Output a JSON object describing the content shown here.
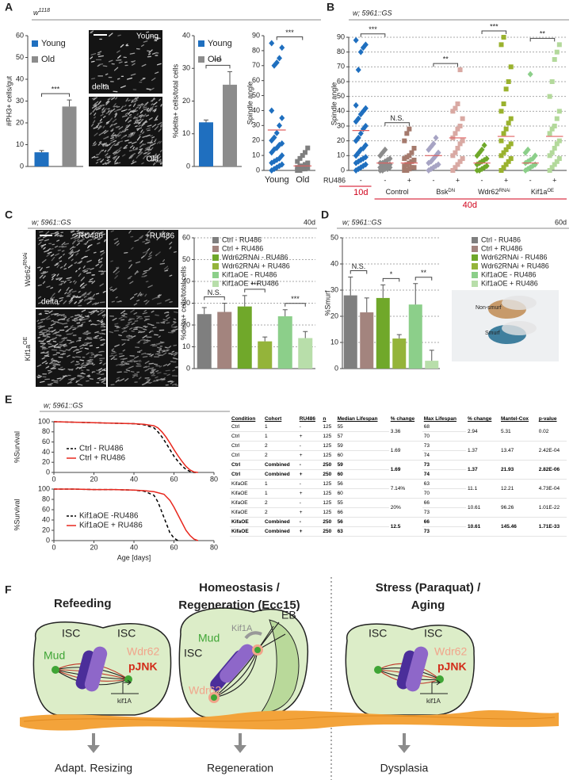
{
  "panel_labels": [
    "A",
    "B",
    "C",
    "D",
    "E",
    "F"
  ],
  "panel_a": {
    "genotype": {
      "base": "w",
      "sup": "1118"
    },
    "images": [
      "Young",
      "delta",
      "Old"
    ]
  },
  "panel_c": {
    "columns": [
      "-RU486",
      "+RU486"
    ],
    "rows": [
      {
        "base": "Wdr62",
        "sup": "RNAi"
      },
      {
        "base": "Kif1a",
        "sup": "OE"
      }
    ],
    "stain": "delta"
  },
  "panel_d": {
    "images": [
      "Non-smurf",
      "Smurf"
    ]
  },
  "chart_data": [
    {
      "type": "bar",
      "y_label": "#PH3+ cells/gut",
      "series": [
        {
          "name": "Young",
          "color": "#1f6fbf",
          "values": [
            6.5
          ],
          "errors": [
            0.8
          ]
        },
        {
          "name": "Old",
          "color": "#8c8c8c",
          "values": [
            27.5
          ],
          "errors": [
            3
          ]
        }
      ],
      "ylim": [
        0,
        60
      ],
      "yticks": [
        0,
        10,
        20,
        30,
        40,
        50,
        60
      ],
      "grid": false,
      "annotations": [
        "***"
      ]
    },
    {
      "type": "bar",
      "y_label": "%delta+ cells/total cells",
      "series": [
        {
          "name": "Young",
          "color": "#1f6fbf",
          "values": [
            13.5
          ],
          "errors": [
            0.7
          ]
        },
        {
          "name": "Old",
          "color": "#8c8c8c",
          "values": [
            25
          ],
          "errors": [
            4
          ]
        }
      ],
      "ylim": [
        0,
        40
      ],
      "yticks": [
        0,
        10,
        20,
        30,
        40
      ],
      "grid": false,
      "annotations": [
        "***"
      ]
    },
    {
      "type": "strip",
      "y_label": "Spindle angle",
      "categories": [
        "Young",
        "Old"
      ],
      "colors": [
        "#1f6fbf",
        "#7f7f7f"
      ],
      "markers": [
        "diamond",
        "square"
      ],
      "points": [
        [
          0,
          1,
          2,
          3,
          4,
          5,
          6,
          7,
          8,
          10,
          12,
          14,
          15,
          17,
          18,
          20,
          22,
          25,
          30,
          35,
          40,
          70,
          72,
          75,
          82,
          85
        ],
        [
          0,
          0,
          1,
          1,
          2,
          2,
          3,
          3,
          4,
          5,
          6,
          8,
          10,
          12,
          15
        ]
      ],
      "means": [
        27,
        3
      ],
      "mean_color": "#e06060",
      "ylim": [
        0,
        90
      ],
      "yticks": [
        0,
        10,
        20,
        30,
        40,
        50,
        60,
        70,
        80,
        90
      ],
      "grid": false,
      "annotations": [
        "***"
      ]
    },
    {
      "type": "strip",
      "title": "w; 5961::GS",
      "y_label": "Spindle angle",
      "row_label": "RU486",
      "categories": [
        "-",
        "-",
        "+",
        "-",
        "+",
        "-",
        "+",
        "-",
        "+"
      ],
      "groups": [
        {
          "base": "Control"
        },
        {
          "base": "Bsk",
          "sup": "DN"
        },
        {
          "base": "Wdr62",
          "sup": "RNAi"
        },
        {
          "base": "Kif1a",
          "sup": "OE"
        }
      ],
      "ages": [
        "10d",
        "40d"
      ],
      "age_color": "#d0021b",
      "colors": [
        "#1f6fbf",
        "#8c8c8c",
        "#a57a6d",
        "#a7a4c4",
        "#d9a9a3",
        "#6fa82a",
        "#9ab22e",
        "#8ccf8a",
        "#b3d99b"
      ],
      "markers": [
        "diamond",
        "diamond",
        "square",
        "diamond",
        "square",
        "diamond",
        "square",
        "diamond",
        "square"
      ],
      "points": [
        [
          0,
          1,
          2,
          3,
          4,
          5,
          6,
          7,
          8,
          9,
          10,
          12,
          14,
          15,
          17,
          20,
          22,
          25,
          28,
          30,
          33,
          35,
          38,
          40,
          42,
          44,
          68,
          80,
          83,
          85,
          88
        ],
        [
          0,
          0,
          1,
          1,
          2,
          2,
          3,
          3,
          4,
          4,
          5,
          5,
          6,
          7,
          8,
          10,
          12,
          14
        ],
        [
          0,
          0,
          1,
          2,
          2,
          3,
          4,
          5,
          6,
          7,
          8,
          9,
          10,
          12,
          15,
          20,
          25,
          28
        ],
        [
          0,
          1,
          2,
          3,
          4,
          5,
          6,
          8,
          10,
          12,
          14,
          16,
          18,
          22
        ],
        [
          0,
          2,
          4,
          6,
          8,
          10,
          12,
          15,
          18,
          20,
          22,
          25,
          28,
          30,
          35,
          40,
          42,
          45,
          68
        ],
        [
          0,
          0,
          1,
          2,
          3,
          4,
          5,
          6,
          7,
          8,
          10,
          12,
          14,
          17
        ],
        [
          0,
          2,
          4,
          6,
          8,
          10,
          12,
          14,
          16,
          18,
          20,
          25,
          28,
          32,
          35,
          40,
          45,
          55,
          60,
          70,
          85,
          90
        ],
        [
          0,
          1,
          2,
          3,
          4,
          5,
          6,
          7,
          8,
          10,
          12,
          14,
          65
        ],
        [
          0,
          2,
          4,
          6,
          8,
          10,
          12,
          15,
          18,
          20,
          25,
          28,
          30,
          35,
          40,
          50,
          60,
          75,
          80,
          85
        ]
      ],
      "means": [
        27,
        5,
        5,
        10,
        22,
        5,
        23,
        5,
        23
      ],
      "mean_color": "#e06060",
      "ylim": [
        0,
        90
      ],
      "yticks": [
        0,
        10,
        20,
        30,
        40,
        50,
        60,
        70,
        80,
        90
      ],
      "grid": true,
      "annotations": [
        "***",
        "N.S.",
        "**",
        "***",
        "**"
      ]
    },
    {
      "type": "bar",
      "title": "w; 5961::GS",
      "age": "40d",
      "y_label": "%delta+ cells/total cells",
      "series": [
        {
          "name": "Ctrl - RU486",
          "color": "#7f7f7f",
          "values": [
            25
          ],
          "errors": [
            3
          ]
        },
        {
          "name": "Ctrl + RU486",
          "color": "#a3847e",
          "values": [
            26
          ],
          "errors": [
            4
          ]
        },
        {
          "name": "Wdr62RNAi - RU486",
          "color": "#70a82a",
          "values": [
            28.5
          ],
          "errors": [
            5
          ]
        },
        {
          "name": "Wdr62RNAi + RU486",
          "color": "#94b43a",
          "values": [
            12.5
          ],
          "errors": [
            2
          ]
        },
        {
          "name": "Kif1aOE - RU486",
          "color": "#8ccf8a",
          "values": [
            24
          ],
          "errors": [
            3
          ]
        },
        {
          "name": "Kif1aOE + RU486",
          "color": "#b8deaa",
          "values": [
            14
          ],
          "errors": [
            3
          ]
        }
      ],
      "ylim": [
        0,
        60
      ],
      "yticks": [
        0,
        10,
        20,
        30,
        40,
        50,
        60
      ],
      "grid": true,
      "annotations": [
        "N.S.",
        "***",
        "***"
      ]
    },
    {
      "type": "bar",
      "title": "w; 5961::GS",
      "age": "60d",
      "y_label": "%Smurf",
      "series": [
        {
          "name": "Ctrl - RU486",
          "color": "#7f7f7f",
          "values": [
            28
          ],
          "errors": [
            7
          ]
        },
        {
          "name": "Ctrl + RU486",
          "color": "#a3847e",
          "values": [
            21.5
          ],
          "errors": [
            5.5
          ]
        },
        {
          "name": "Wdr62RNAi - RU486",
          "color": "#70a82a",
          "values": [
            27
          ],
          "errors": [
            5
          ]
        },
        {
          "name": "Wdr62RNAi + RU486",
          "color": "#94b43a",
          "values": [
            11.5
          ],
          "errors": [
            1.5
          ]
        },
        {
          "name": "Kif1aOE - RU486",
          "color": "#8ccf8a",
          "values": [
            24.5
          ],
          "errors": [
            8
          ]
        },
        {
          "name": "Kif1aOE + RU486",
          "color": "#b8deaa",
          "values": [
            3
          ],
          "errors": [
            4
          ]
        }
      ],
      "ylim": [
        0,
        50
      ],
      "yticks": [
        0,
        10,
        20,
        30,
        40,
        50
      ],
      "grid": true,
      "annotations": [
        "N.S.",
        "*",
        "**"
      ]
    },
    {
      "type": "line",
      "title": "w; 5961::GS",
      "y_label": "%Survival",
      "xlim": [
        0,
        80
      ],
      "xticks": [
        0,
        20,
        40,
        60,
        80
      ],
      "ylim": [
        0,
        100
      ],
      "yticks": [
        0,
        20,
        40,
        60,
        80,
        100
      ],
      "series": [
        {
          "name": "Ctrl - RU486",
          "color": "#000000",
          "dash": true,
          "x": [
            0,
            10,
            20,
            30,
            40,
            45,
            50,
            52,
            54,
            56,
            58,
            60,
            62,
            64,
            66,
            68,
            70,
            72
          ],
          "values": [
            100,
            99,
            98,
            97,
            96,
            94,
            88,
            80,
            70,
            58,
            45,
            32,
            22,
            13,
            6,
            2,
            0,
            0
          ]
        },
        {
          "name": "Ctrl + RU486",
          "color": "#e8281e",
          "dash": false,
          "x": [
            0,
            10,
            20,
            30,
            40,
            45,
            50,
            52,
            54,
            56,
            58,
            60,
            62,
            64,
            66,
            68,
            70,
            72
          ],
          "values": [
            100,
            99,
            98,
            97,
            96,
            95,
            92,
            88,
            80,
            70,
            58,
            45,
            33,
            22,
            12,
            5,
            1,
            0
          ]
        }
      ]
    },
    {
      "type": "line",
      "x_label": "Age [days]",
      "y_label": "%Survival",
      "xlim": [
        0,
        80
      ],
      "xticks": [
        0,
        20,
        40,
        60,
        80
      ],
      "ylim": [
        0,
        100
      ],
      "yticks": [
        0,
        20,
        40,
        60,
        80,
        100
      ],
      "series": [
        {
          "name": "Kif1aOE -RU486",
          "color": "#000000",
          "dash": true,
          "x": [
            0,
            10,
            20,
            30,
            40,
            45,
            50,
            52,
            54,
            56,
            58,
            60,
            62
          ],
          "values": [
            100,
            100,
            99,
            99,
            98,
            96,
            88,
            75,
            55,
            35,
            15,
            5,
            0
          ]
        },
        {
          "name": "Kif1aOE + RU486",
          "color": "#e8281e",
          "dash": false,
          "x": [
            0,
            10,
            20,
            30,
            40,
            45,
            50,
            55,
            58,
            60,
            62,
            64,
            66,
            68,
            70,
            72
          ],
          "values": [
            100,
            100,
            99,
            99,
            98,
            97,
            95,
            90,
            78,
            65,
            50,
            35,
            20,
            10,
            3,
            0
          ]
        }
      ]
    }
  ],
  "table": {
    "header": [
      "Condition",
      "Cohort",
      "RU486",
      "n",
      "Median Lifespan",
      "% change",
      "Max Lifespan",
      "% change",
      "Mantel-Cox",
      "p-value"
    ],
    "groups": [
      {
        "bold": false,
        "rows": [
          [
            "Ctrl",
            "1",
            "-",
            "125",
            "55",
            "68"
          ],
          [
            "Ctrl",
            "1",
            "+",
            "125",
            "57",
            "70"
          ]
        ],
        "shared": [
          "3.36",
          "2.94",
          "5.31",
          "0.02"
        ]
      },
      {
        "bold": false,
        "rows": [
          [
            "Ctrl",
            "2",
            "-",
            "125",
            "59",
            "73"
          ],
          [
            "Ctrl",
            "2",
            "+",
            "125",
            "60",
            "74"
          ]
        ],
        "shared": [
          "1.69",
          "1.37",
          "13.47",
          "2.42E-04"
        ]
      },
      {
        "bold": true,
        "rows": [
          [
            "Ctrl",
            "Combined",
            "-",
            "250",
            "59",
            "73"
          ],
          [
            "Ctrl",
            "Combined",
            "+",
            "250",
            "60",
            "74"
          ]
        ],
        "shared": [
          "1.69",
          "1.37",
          "21.93",
          "2.82E-06"
        ]
      },
      {
        "bold": false,
        "rows": [
          [
            "KifaOE",
            "1",
            "-",
            "125",
            "56",
            "63"
          ],
          [
            "KifaOE",
            "1",
            "+",
            "125",
            "60",
            "70"
          ]
        ],
        "shared": [
          "7.14%",
          "11.1",
          "12.21",
          "4.73E-04"
        ]
      },
      {
        "bold": false,
        "rows": [
          [
            "KifaOE",
            "2",
            "-",
            "125",
            "55",
            "66"
          ],
          [
            "KifaOE",
            "2",
            "+",
            "125",
            "66",
            "73"
          ]
        ],
        "shared": [
          "20%",
          "10.61",
          "96.26",
          "1.01E-22"
        ]
      },
      {
        "bold": true,
        "rows": [
          [
            "KifaOE",
            "Combined",
            "-",
            "250",
            "56",
            "66"
          ],
          [
            "KifaOE",
            "Combined",
            "+",
            "250",
            "63",
            "73"
          ]
        ],
        "shared": [
          "12.5",
          "10.61",
          "145.46",
          "1.71E-33"
        ]
      }
    ]
  },
  "diagram": {
    "columns": [
      {
        "title": [
          "Refeeding"
        ],
        "cells": [
          "ISC",
          "ISC"
        ],
        "proteins": [
          "Mud",
          "Wdr62",
          "pJNK",
          "kif1A"
        ],
        "outcome": "Adapt. Resizing"
      },
      {
        "title": [
          "Homeostasis /",
          "Regeneration (Ecc15)"
        ],
        "cells": [
          "ISC",
          "EB"
        ],
        "proteins": [
          "Mud",
          "Kif1A",
          "Wdr62"
        ],
        "outcome": "Regeneration"
      },
      {
        "title": [
          "Stress (Paraquat) /",
          "Aging"
        ],
        "cells": [
          "ISC",
          "ISC"
        ],
        "proteins": [
          "Wdr62",
          "pJNK",
          "kif1A"
        ],
        "outcome": "Dysplasia"
      }
    ]
  }
}
